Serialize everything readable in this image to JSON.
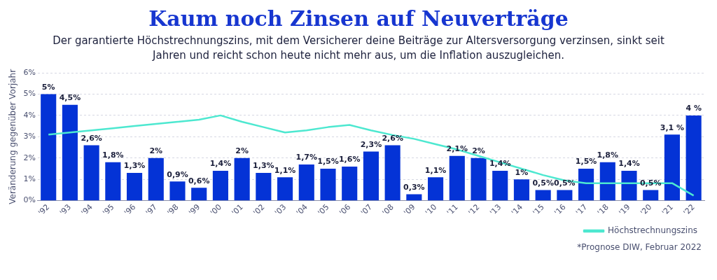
{
  "chart_data": {
    "type": "bar",
    "title": "Kaum noch Zinsen auf Neuverträge",
    "subtitle": "Der garantierte Höchstrechnungszins, mit dem Versicherer deine Beiträge zur Altersversorgung verzinsen, sinkt seit Jahren und reicht schon heute nicht mehr aus, um die Inflation auszugleichen.",
    "ylabel": "Veränderung gegenüber Vorjahr",
    "categories": [
      "'92",
      "'93",
      "'94",
      "'95",
      "'96",
      "'97",
      "'98",
      "'99",
      "'00",
      "'01",
      "'02",
      "'03",
      "'04",
      "'05",
      "'06",
      "'07",
      "'08",
      "'09",
      "'10",
      "'11",
      "'12",
      "'13",
      "'14",
      "'15",
      "'16",
      "'17",
      "'18",
      "'19",
      "'20",
      "'21",
      "'22"
    ],
    "series": [
      {
        "color": "#0433d6",
        "values": [
          5,
          4.5,
          2.6,
          1.8,
          1.3,
          2,
          0.9,
          0.6,
          1.4,
          2,
          1.3,
          1.1,
          1.7,
          1.5,
          1.6,
          2.3,
          2.6,
          0.3,
          1.1,
          2.1,
          2,
          1.4,
          1,
          0.5,
          0.5,
          1.5,
          1.8,
          1.4,
          0.5,
          3.1,
          4
        ],
        "value_labels": [
          "5%",
          "4,5%",
          "2,6%",
          "1,8%",
          "1,3%",
          "2%",
          "0,9%",
          "0,6%",
          "1,4%",
          "2%",
          "1,3%",
          "1,1%",
          "1,7%",
          "1,5%",
          "1,6%",
          "2,3%",
          "2,6%",
          "0,3%",
          "1,1%",
          "2,1%",
          "2%",
          "1,4%",
          "1%",
          "0,5%",
          "0,5%",
          "1,5%",
          "1,8%",
          "1,4%",
          "0,5%",
          "3,1 %",
          "4 %"
        ]
      },
      {
        "type": "line",
        "name": "Höchstrechnungszins",
        "color": "#4de8d0",
        "values": [
          3.1,
          3.2,
          3.3,
          3.4,
          3.5,
          3.6,
          3.7,
          3.8,
          4,
          3.7,
          3.45,
          3.2,
          3.3,
          3.45,
          3.55,
          3.3,
          3.08,
          2.9,
          2.65,
          2.4,
          2.1,
          1.8,
          1.5,
          1.2,
          0.95,
          0.82,
          0.82,
          0.82,
          0.82,
          0.82,
          0.24
        ]
      }
    ],
    "ylim": [
      0,
      6
    ],
    "yticks": [
      {
        "value": 0,
        "label": "0%"
      },
      {
        "value": 1,
        "label": "1%"
      },
      {
        "value": 2,
        "label": "2%"
      },
      {
        "value": 3,
        "label": "3%"
      },
      {
        "value": 4,
        "label": "4%"
      },
      {
        "value": 5,
        "label": "5%"
      },
      {
        "value": 6,
        "label": "6%"
      }
    ],
    "grid": "y",
    "legend": "bottom right",
    "marker": "none",
    "line_style": "solid",
    "annotations": [
      "*Prognose DIW, Februar 2022"
    ]
  }
}
